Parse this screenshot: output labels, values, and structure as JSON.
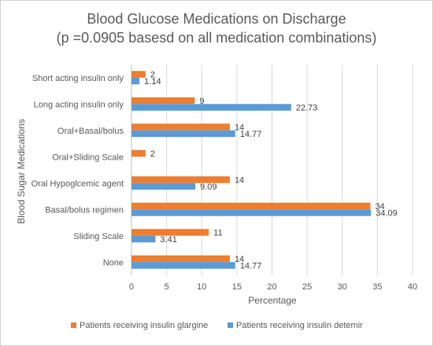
{
  "chart_data": {
    "type": "bar",
    "orientation": "horizontal",
    "title": "Blood Glucose Medications on Discharge",
    "subtitle": "(p =0.0905 basesd on all medication combinations)",
    "xlabel": "Percentage",
    "ylabel": "Blood Sugar Medications",
    "xlim": [
      0,
      40
    ],
    "xticks": [
      0,
      5,
      10,
      15,
      20,
      25,
      30,
      35,
      40
    ],
    "grid": true,
    "legend_position": "bottom",
    "categories": [
      "Short acting insulin only",
      "Long acting insulin only",
      "Oral+Basal/bolus",
      "Oral+Sliding Scale",
      "Oral Hypoglcemic agent",
      "Basal/bolus regimen",
      "Sliding Scale",
      "None"
    ],
    "series": [
      {
        "name": "Patients receiving insulin glargine",
        "color": "#ED7D31",
        "values": [
          2,
          9,
          14,
          2,
          14,
          34,
          11,
          14
        ],
        "labels": [
          "2",
          "9",
          "14",
          "2",
          "14",
          "34",
          "11",
          "14"
        ]
      },
      {
        "name": "Patients receiving insulin detemir",
        "color": "#5B9BD5",
        "values": [
          1.14,
          22.73,
          14.77,
          null,
          9.09,
          34.09,
          3.41,
          14.77
        ],
        "labels": [
          "1.14",
          "22.73",
          "14.77",
          "",
          "9.09",
          "34.09",
          "3.41",
          "14.77"
        ]
      }
    ]
  }
}
